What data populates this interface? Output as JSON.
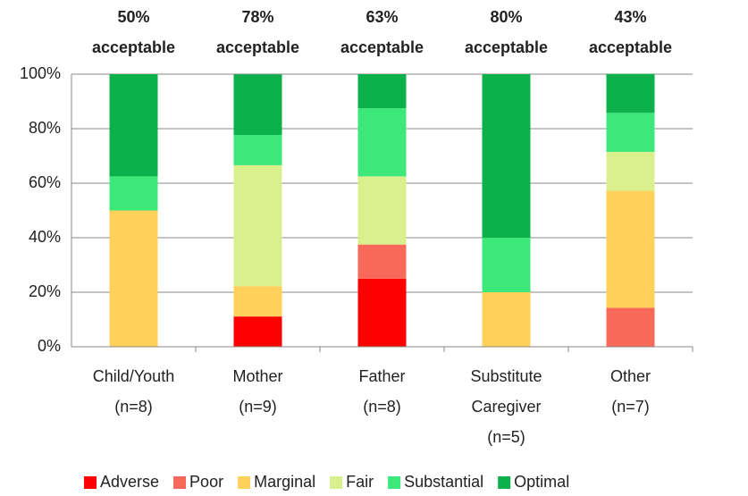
{
  "chart_data": {
    "type": "stacked_bar",
    "categories": [
      [
        "Child/Youth",
        "(n=8)"
      ],
      [
        "Mother",
        "(n=9)"
      ],
      [
        "Father",
        "(n=8)"
      ],
      [
        "Substitute",
        "Caregiver",
        "(n=5)"
      ],
      [
        "Other",
        "(n=7)"
      ]
    ],
    "annotations": [
      [
        "50%",
        "acceptable"
      ],
      [
        "78%",
        "acceptable"
      ],
      [
        "63%",
        "acceptable"
      ],
      [
        "80%",
        "acceptable"
      ],
      [
        "43%",
        "acceptable"
      ]
    ],
    "series": [
      {
        "name": "Adverse",
        "color": "#ff0000",
        "values": [
          0,
          11.1,
          25,
          0,
          0
        ]
      },
      {
        "name": "Poor",
        "color": "#f8695a",
        "values": [
          0,
          0,
          12.5,
          0,
          14.3
        ]
      },
      {
        "name": "Marginal",
        "color": "#fdd15a",
        "values": [
          50,
          11.1,
          0,
          20,
          42.9
        ]
      },
      {
        "name": "Fair",
        "color": "#d9f08c",
        "values": [
          0,
          44.4,
          25,
          0,
          14.3
        ]
      },
      {
        "name": "Substantial",
        "color": "#3ce87a",
        "values": [
          12.5,
          11.1,
          25,
          20,
          14.3
        ]
      },
      {
        "name": "Optimal",
        "color": "#0db14b",
        "values": [
          37.5,
          22.2,
          12.5,
          60,
          14.3
        ]
      }
    ],
    "ylim": [
      0,
      100
    ],
    "yticks": [
      {
        "value": 0,
        "label": "0%"
      },
      {
        "value": 20,
        "label": "20%"
      },
      {
        "value": 40,
        "label": "40%"
      },
      {
        "value": 60,
        "label": "60%"
      },
      {
        "value": 80,
        "label": "80%"
      },
      {
        "value": 100,
        "label": "100%"
      }
    ],
    "grid": true,
    "legend": "bottom"
  }
}
